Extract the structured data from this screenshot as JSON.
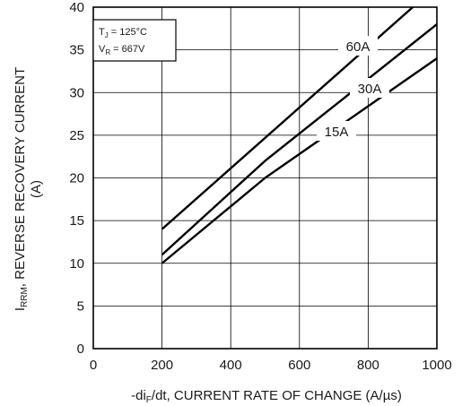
{
  "chart_data": {
    "type": "line",
    "xlabel": {
      "prefix": "-di",
      "sub": "F",
      "suffix": "/dt, CURRENT RATE OF CHANGE (A/µs)"
    },
    "ylabel": {
      "prefix": "I",
      "sub": "RRM",
      "suffix": ", REVERSE RECOVERY CURRENT",
      "line2": "(A)"
    },
    "xlim": [
      0,
      1000
    ],
    "ylim": [
      0,
      40
    ],
    "x_ticks": [
      0,
      200,
      400,
      600,
      800,
      1000
    ],
    "y_ticks": [
      0,
      5,
      10,
      15,
      20,
      25,
      30,
      35,
      40
    ],
    "grid": true,
    "conditions": {
      "line1": {
        "main": "T",
        "sub": "J",
        "rest": " = 125°C"
      },
      "line2": {
        "main": "V",
        "sub": "R",
        "rest": " = 667V"
      }
    },
    "series": [
      {
        "name": "60A",
        "x": [
          200,
          1000
        ],
        "y": [
          14,
          42.5
        ]
      },
      {
        "name": "30A",
        "x": [
          200,
          500,
          1000
        ],
        "y": [
          11,
          22,
          38
        ]
      },
      {
        "name": "15A",
        "x": [
          200,
          500,
          1000
        ],
        "y": [
          10,
          20,
          34
        ]
      }
    ]
  }
}
